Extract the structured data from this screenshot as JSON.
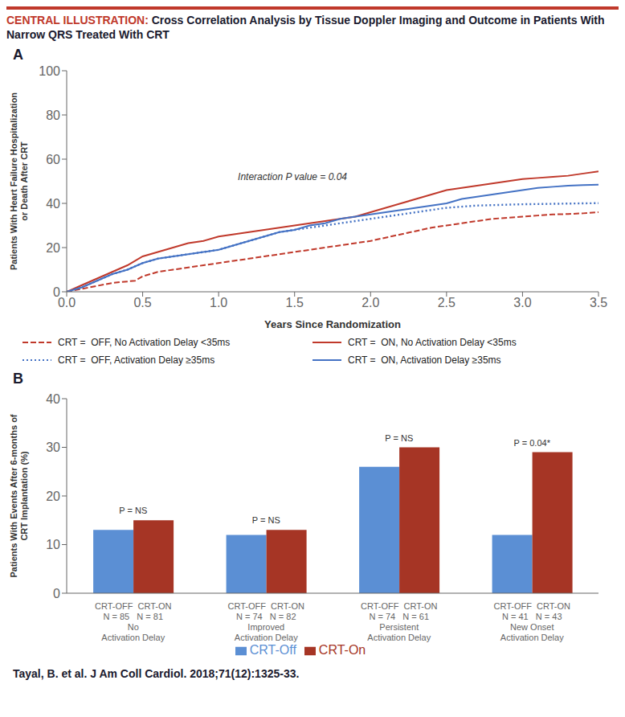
{
  "chart_data": [
    {
      "type": "line",
      "title": "CENTRAL ILLUSTRATION: Cross Correlation Analysis by Tissue Doppler Imaging and Outcome in Patients With Narrow QRS Treated With CRT",
      "label": "A",
      "x_label": "Years Since Randomization",
      "y_label": "Patients With Heart Failure Hospitalization\nor Death After CRT",
      "xlim": [
        0,
        3.5
      ],
      "xticks": [
        {
          "value": 0,
          "label": "0.0"
        },
        {
          "value": 0.5,
          "label": "0.5"
        },
        {
          "value": 1,
          "label": "1.0"
        },
        {
          "value": 1.5,
          "label": "1.5"
        },
        {
          "value": 2,
          "label": "2.0"
        },
        {
          "value": 2.5,
          "label": "2.5"
        },
        {
          "value": 3,
          "label": "3.0"
        },
        {
          "value": 3.5,
          "label": "3.5"
        }
      ],
      "ylim": [
        0,
        100
      ],
      "yticks": [
        0,
        20,
        40,
        60,
        80,
        100
      ],
      "grid": false,
      "legend": "bottom",
      "annotations": [
        {
          "x": 1.1,
          "y": 52,
          "text": "Interaction P value = 0.04"
        }
      ],
      "series": [
        {
          "name": "CRT =  OFF, No Activation Delay <35ms",
          "color": "#C0392B",
          "line_style": "dashed",
          "x": [
            0,
            0.15,
            0.3,
            0.45,
            0.5,
            0.6,
            0.7,
            0.8,
            0.9,
            1.0,
            1.1,
            1.2,
            1.3,
            1.4,
            1.5,
            1.6,
            1.7,
            1.8,
            1.9,
            2.0,
            2.2,
            2.4,
            2.5,
            2.6,
            2.7,
            2.8,
            2.9,
            3.0,
            3.1,
            3.2,
            3.3,
            3.4,
            3.5
          ],
          "values": [
            0,
            2,
            4,
            5,
            7,
            9,
            10,
            11,
            12,
            13,
            14,
            15,
            16,
            17,
            18,
            19,
            20,
            21,
            22,
            23,
            26,
            29,
            30,
            31,
            32,
            33,
            33.5,
            34,
            34.5,
            35,
            35.2,
            35.5,
            36
          ]
        },
        {
          "name": "CRT =  ON, No Activation Delay <35ms",
          "color": "#C0392B",
          "line_style": "solid",
          "x": [
            0,
            0.1,
            0.2,
            0.3,
            0.4,
            0.5,
            0.6,
            0.7,
            0.8,
            0.9,
            1.0,
            1.1,
            1.2,
            1.3,
            1.4,
            1.5,
            1.6,
            1.7,
            1.8,
            1.9,
            2.0,
            2.1,
            2.2,
            2.3,
            2.4,
            2.5,
            2.6,
            2.7,
            2.8,
            2.9,
            3.0,
            3.1,
            3.2,
            3.3,
            3.4,
            3.5
          ],
          "values": [
            0,
            3,
            6,
            9,
            12,
            16,
            18,
            20,
            22,
            23,
            25,
            26,
            27,
            28,
            29,
            30,
            31,
            32,
            33,
            34,
            36,
            38,
            40,
            42,
            44,
            46,
            47,
            48,
            49,
            50,
            51,
            51.5,
            52,
            52.5,
            53.5,
            54.5
          ]
        },
        {
          "name": "CRT =  OFF, Activation Delay ≥35ms",
          "color": "#4472C4",
          "line_style": "dotted",
          "x": [
            0,
            0.1,
            0.2,
            0.3,
            0.4,
            0.5,
            0.6,
            0.7,
            0.8,
            0.9,
            1.0,
            1.1,
            1.2,
            1.3,
            1.4,
            1.5,
            1.6,
            1.7,
            1.8,
            1.9,
            2.0,
            2.1,
            2.2,
            2.3,
            2.4,
            2.5,
            2.6,
            2.7,
            2.8,
            2.9,
            3.0,
            3.1,
            3.2,
            3.3,
            3.4,
            3.5
          ],
          "values": [
            0,
            2,
            5,
            8,
            10,
            13,
            15,
            16,
            17,
            18,
            19,
            21,
            23,
            25,
            27,
            28,
            29,
            30,
            31,
            32,
            33,
            34,
            35,
            36,
            37,
            38,
            38.5,
            39,
            39.2,
            39.4,
            39.6,
            39.7,
            39.8,
            39.9,
            40.0,
            40.1
          ]
        },
        {
          "name": "CRT =  ON, Activation Delay ≥35ms",
          "color": "#4472C4",
          "line_style": "solid",
          "x": [
            0,
            0.1,
            0.2,
            0.3,
            0.4,
            0.5,
            0.6,
            0.7,
            0.8,
            0.9,
            1.0,
            1.1,
            1.2,
            1.3,
            1.4,
            1.5,
            1.6,
            1.7,
            1.8,
            1.9,
            2.0,
            2.1,
            2.2,
            2.3,
            2.4,
            2.5,
            2.6,
            2.7,
            2.8,
            2.9,
            3.0,
            3.1,
            3.2,
            3.3,
            3.4,
            3.5
          ],
          "values": [
            0,
            2,
            5,
            8,
            10,
            13,
            15,
            16,
            17,
            18,
            19,
            21,
            23,
            25,
            27,
            28,
            30,
            31,
            33,
            34,
            35,
            36,
            37,
            38,
            39,
            40,
            42,
            43,
            44,
            45,
            46,
            47,
            47.5,
            48,
            48.3,
            48.5
          ]
        }
      ]
    },
    {
      "type": "bar",
      "label": "B",
      "categories": [
        "CRT-OFF  CRT-ON\nN = 85   N = 81\nNo\nActivation Delay",
        "CRT-OFF  CRT-ON\nN = 74   N = 82\nImproved\nActivation Delay",
        "CRT-OFF  CRT-ON\nN = 74   N = 61\nPersistent\nActivation Delay",
        "CRT-OFF  CRT-ON\nN = 41   N = 43\nNew Onset\nActivation Delay"
      ],
      "y_label": "Patients With Events After 6-months of\nCRT Implantation (%)",
      "ylim": [
        0,
        40
      ],
      "yticks": [
        0,
        10,
        20,
        30,
        40
      ],
      "grid": false,
      "legend": "bottom",
      "annotations": [
        "P = NS",
        "P = NS",
        "P = NS",
        "P = 0.04*"
      ],
      "series": [
        {
          "name": "CRT-Off",
          "color": "#5B8FD4",
          "values": [
            13,
            12,
            26,
            12
          ]
        },
        {
          "name": "CRT-On",
          "color": "#A63525",
          "values": [
            15,
            13,
            30,
            29
          ]
        }
      ],
      "footer": "Tayal, B. et al. J Am Coll Cardiol. 2018;71(12):1325-33."
    }
  ]
}
